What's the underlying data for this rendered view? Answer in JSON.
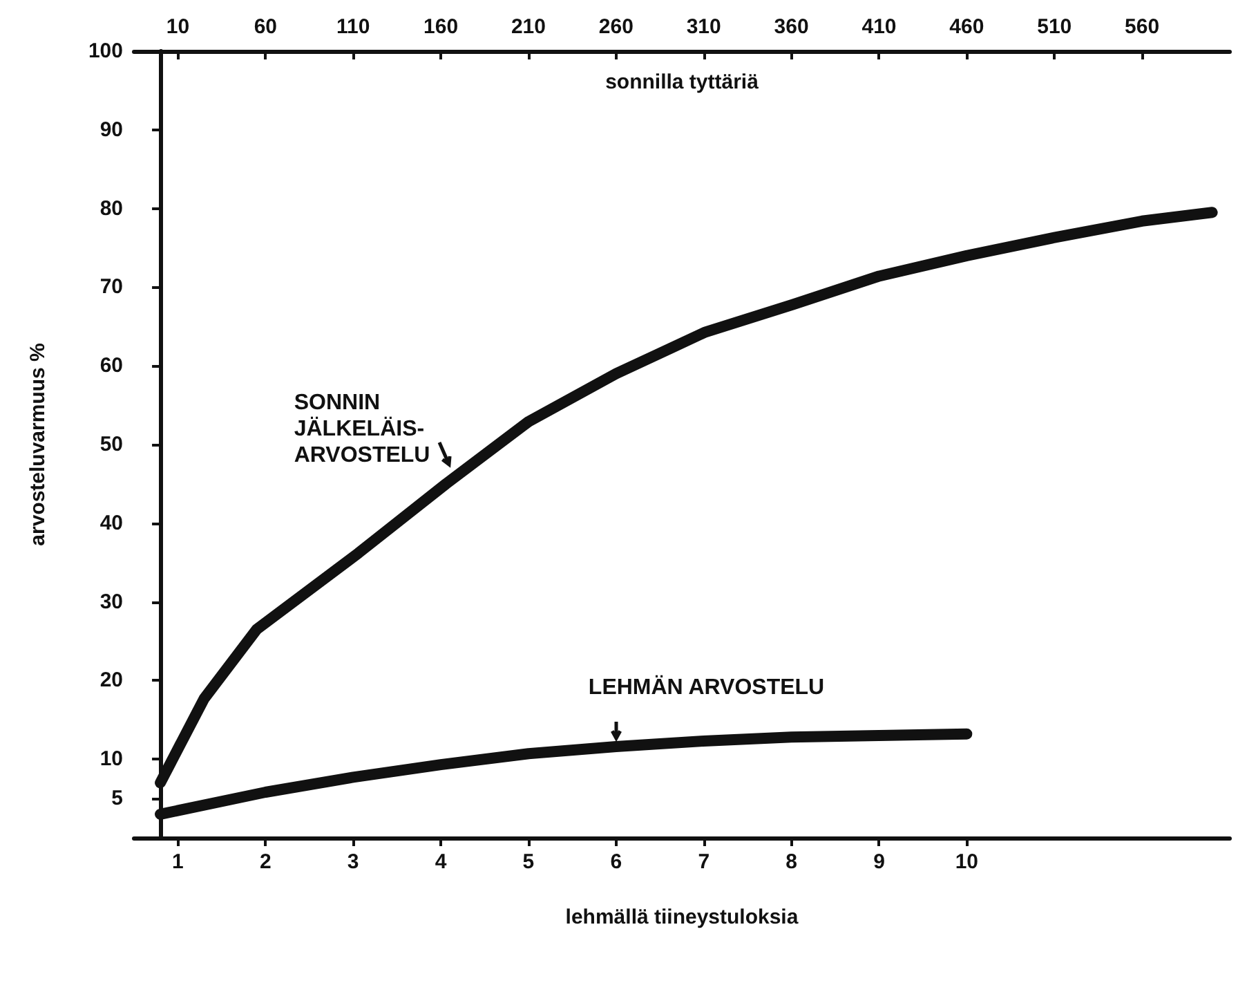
{
  "chart_data": {
    "type": "line",
    "xlabel": "lehmällä tiineystuloksia",
    "x2label": "sonnilla tyttäriä",
    "ylabel": "arvosteluvarmuus %",
    "xlim": [
      0.5,
      13
    ],
    "xticks": [
      1,
      2,
      3,
      4,
      5,
      6,
      7,
      8,
      9,
      10
    ],
    "x2lim": [
      -15,
      610
    ],
    "x2ticks": [
      10,
      60,
      110,
      160,
      210,
      260,
      310,
      360,
      410,
      460,
      510,
      560
    ],
    "ylim": [
      0,
      100
    ],
    "yticks": [
      5,
      10,
      20,
      30,
      40,
      50,
      60,
      70,
      80,
      90,
      100
    ],
    "grid": false,
    "line_style": "solid",
    "series": [
      {
        "name": "SONNIN JÄLKELÄIS-ARVOSTELU",
        "color": "#111111",
        "axis": "x2",
        "x": [
          0,
          25,
          55,
          113,
          163,
          210,
          260,
          311,
          361,
          410,
          460,
          510,
          560,
          600
        ],
        "values": [
          7,
          17.7,
          26.5,
          36.2,
          45,
          52.9,
          59,
          64.3,
          67.8,
          71.4,
          74,
          76.3,
          78.4,
          79.5
        ]
      },
      {
        "name": "LEHMÄN ARVOSTELU",
        "color": "#111111",
        "x": [
          0.8,
          2,
          3,
          4,
          5,
          6,
          7,
          8,
          9,
          10
        ],
        "values": [
          3,
          5.8,
          7.7,
          9.3,
          10.7,
          11.6,
          12.3,
          12.8,
          13,
          13.2
        ]
      }
    ]
  }
}
